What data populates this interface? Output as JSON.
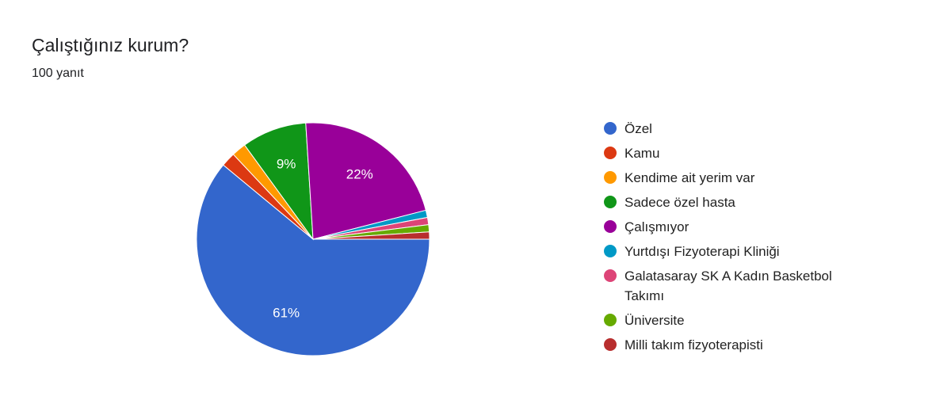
{
  "chart_data": {
    "type": "pie",
    "title": "Çalıştığınız kurum?",
    "subtitle": "100 yanıt",
    "categories": [
      "Özel",
      "Kamu",
      "Kendime ait yerim var",
      "Sadece özel hasta",
      "Çalışmıyor",
      "Yurtdışı Fizyoterapi Kliniği",
      "Galatasaray SK A Kadın Basketbol Takımı",
      "Üniversite",
      "Milli takım fizyoterapisti"
    ],
    "values": [
      61,
      2,
      2,
      9,
      22,
      1,
      1,
      1,
      1
    ],
    "value_labels": [
      "61%",
      null,
      null,
      "9%",
      "22%",
      null,
      null,
      null,
      null
    ],
    "colors": [
      "#3366cc",
      "#dc3912",
      "#ff9900",
      "#109618",
      "#990099",
      "#0099c6",
      "#dd4477",
      "#66aa00",
      "#b82e2e"
    ],
    "legend": "right"
  }
}
